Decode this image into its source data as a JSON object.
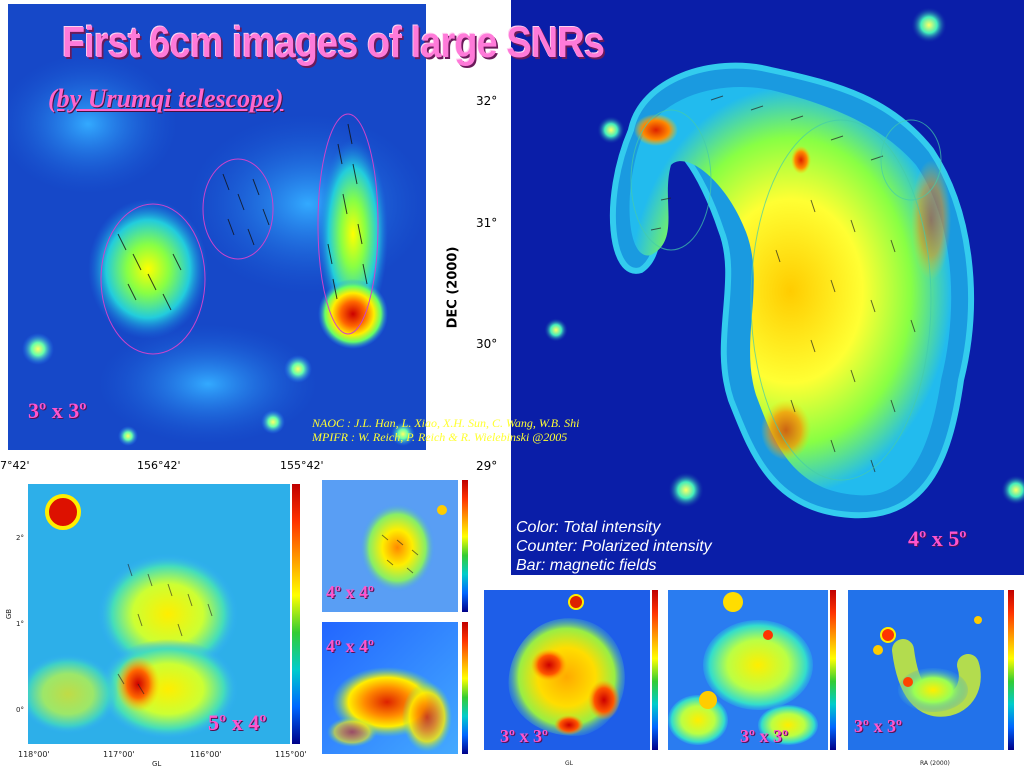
{
  "slide": {
    "title": "First 6cm images of large SNRs",
    "subtitle": "(by Urumqi telescope)",
    "credits": {
      "line1": "NAOC : J.L. Han, L. Xiao, X.H. Sun, C. Wang, W.B. Shi",
      "line2": "MPIFR : W. Reich, P.  Reich & R.  Wielebinski  @2005"
    },
    "legend": {
      "line1": "Color: Total intensity",
      "line2": "Counter: Polarized intensity",
      "line3": "Bar: magnetic  fields"
    }
  },
  "panels": {
    "top_left": {
      "size_label": "3º x 3º",
      "x_ticks": [
        "7°42'",
        "156°42'",
        "155°42'"
      ]
    },
    "right_large": {
      "size_label": "4º x 5º",
      "axis_title": "DEC (2000)",
      "y_ticks": [
        "32°",
        "31°",
        "30°",
        "29°"
      ]
    },
    "bottom_left": {
      "size_label": "5º x 4º",
      "x_ticks": [
        "118°00'",
        "117°00'",
        "116°00'",
        "115°00'"
      ],
      "y_ticks": [
        "2°",
        "1°",
        "0°"
      ],
      "x_label": "GL",
      "y_label": "GB"
    },
    "small_upper": {
      "size_label": "4º x 4º"
    },
    "small_lower": {
      "size_label": "4º x 4º"
    },
    "bottom_a": {
      "size_label": "3º x 3º",
      "x_label": "GL"
    },
    "bottom_b": {
      "size_label": "3º x 3º"
    },
    "bottom_c": {
      "size_label": "3º x 3º",
      "x_label": "RA (2000)"
    }
  },
  "colors": {
    "background": "#0a1ea8",
    "title_pink": "#ff7ad9",
    "credit_yellow": "#ffff33",
    "legend_white": "#ffffff"
  }
}
